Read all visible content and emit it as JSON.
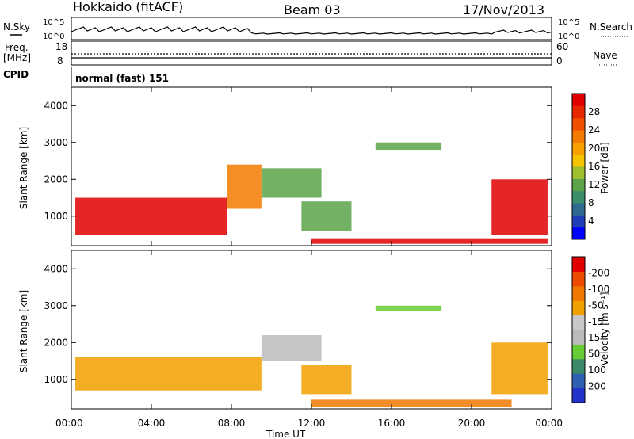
{
  "header": {
    "station": "Hokkaido (fitACF)",
    "beam": "Beam 03",
    "date": "17/Nov/2013"
  },
  "strip_labels": {
    "nsky": "N.Sky",
    "nsearch": "N.Search",
    "freq_line1": "Freq.",
    "freq_line2": "[MHz]",
    "nave": "Nave",
    "cpid": "CPID",
    "cpid_value": "normal (fast) 151",
    "noise_tick_top": "10^5",
    "noise_tick_bottom": "10^0",
    "freq_tick_top": "18",
    "freq_tick_bottom": "8",
    "nave_tick_top": "60",
    "nave_tick_bottom": "0"
  },
  "chart_data": [
    {
      "type": "heatmap",
      "panel": "power",
      "ylabel": "Slant Range [km]",
      "ylim": [
        200,
        4500
      ],
      "yticks": [
        "1000",
        "2000",
        "3000",
        "4000"
      ],
      "colorbar": {
        "label": "Power [dB]",
        "ticks": [
          "4",
          "8",
          "12",
          "16",
          "20",
          "24",
          "28"
        ],
        "colors": [
          "#0000ff",
          "#1f3fb8",
          "#2e6b8f",
          "#3a8f6a",
          "#5ba34a",
          "#9fbf2e",
          "#f5c400",
          "#f7a000",
          "#f57a00",
          "#f04f00",
          "#e62800",
          "#e00000"
        ]
      },
      "regions": [
        {
          "t": [
            0.2,
            7.8
          ],
          "r": [
            500,
            1500
          ],
          "level": "28"
        },
        {
          "t": [
            7.8,
            9.5
          ],
          "r": [
            1200,
            2400
          ],
          "level": "20"
        },
        {
          "t": [
            9.5,
            12.5
          ],
          "r": [
            1500,
            2300
          ],
          "level": "12"
        },
        {
          "t": [
            11.5,
            14.0
          ],
          "r": [
            600,
            1400
          ],
          "level": "12"
        },
        {
          "t": [
            15.2,
            18.5
          ],
          "r": [
            2800,
            3000
          ],
          "level": "12"
        },
        {
          "t": [
            21.0,
            23.8
          ],
          "r": [
            500,
            2000
          ],
          "level": "28"
        },
        {
          "t": [
            12.0,
            23.8
          ],
          "r": [
            250,
            400
          ],
          "level": "28"
        }
      ]
    },
    {
      "type": "heatmap",
      "panel": "velocity",
      "ylabel": "Slant Range [km]",
      "ylim": [
        200,
        4500
      ],
      "yticks": [
        "1000",
        "2000",
        "3000",
        "4000"
      ],
      "xlabel": "Time UT",
      "xticks": [
        "00:00",
        "04:00",
        "08:00",
        "12:00",
        "16:00",
        "20:00",
        "00:00"
      ],
      "colorbar": {
        "label": "Velocity [m s⁻¹]",
        "ticks": [
          "200",
          "100",
          "50",
          "15",
          "-15",
          "-50",
          "-100",
          "-200"
        ],
        "colors": [
          "#2233cc",
          "#2f5fb0",
          "#3a8a6a",
          "#66cc33",
          "#bbbbbb",
          "#c8c8c8",
          "#f2a000",
          "#f07800",
          "#ee4a00",
          "#e00000"
        ]
      },
      "regions": [
        {
          "t": [
            0.2,
            9.5
          ],
          "r": [
            700,
            1600
          ],
          "level": "-15"
        },
        {
          "t": [
            9.5,
            12.5
          ],
          "r": [
            1500,
            2200
          ],
          "level": "15"
        },
        {
          "t": [
            11.5,
            14.0
          ],
          "r": [
            600,
            1400
          ],
          "level": "-15"
        },
        {
          "t": [
            15.2,
            18.5
          ],
          "r": [
            2850,
            3000
          ],
          "level": "50"
        },
        {
          "t": [
            21.0,
            23.8
          ],
          "r": [
            600,
            2000
          ],
          "level": "-15"
        },
        {
          "t": [
            12.0,
            22.0
          ],
          "r": [
            250,
            450
          ],
          "level": "-50"
        }
      ]
    }
  ]
}
